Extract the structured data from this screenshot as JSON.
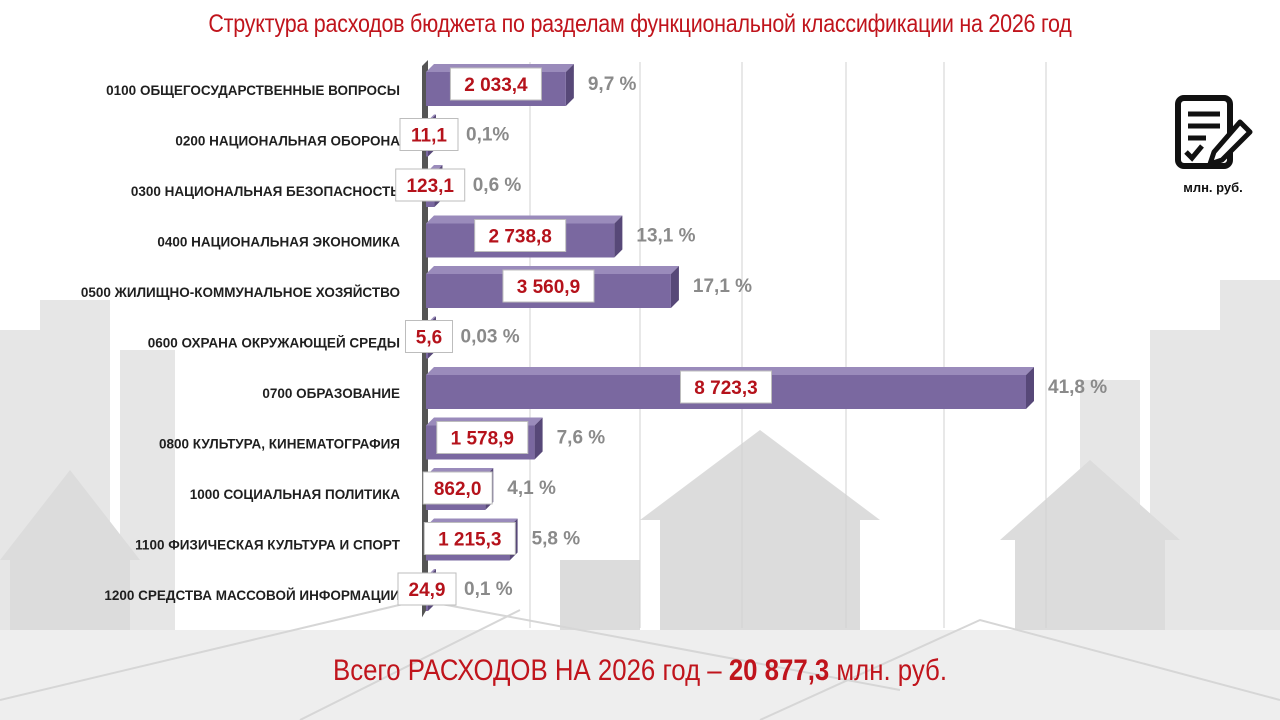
{
  "title": "Структура расходов бюджета по разделам функциональной классификации на 2026 год",
  "unit": "млн. руб.",
  "total": {
    "prefix": "Всего РАСХОДОВ НА 2026 год –",
    "value": "20 877,3",
    "suffix": "млн. руб."
  },
  "colors": {
    "title": "#c0141c",
    "bar": "#7a68a0",
    "value_text": "#b5121b",
    "percent_text": "#8a8a8a"
  },
  "chart_data": {
    "type": "bar",
    "orientation": "horizontal",
    "grid": true,
    "xlim": [
      0,
      9000
    ],
    "categories": [
      "0100 ОБЩЕГОСУДАРСТВЕННЫЕ ВОПРОСЫ",
      "0200 НАЦИОНАЛЬНАЯ ОБОРОНА",
      "0300 НАЦИОНАЛЬНАЯ  БЕЗОПАСНОСТЬ",
      "0400 НАЦИОНАЛЬНАЯ ЭКОНОМИКА",
      "0500 ЖИЛИЩНО-КОММУНАЛЬНОЕ ХОЗЯЙСТВО",
      "0600 ОХРАНА ОКРУЖАЮЩЕЙ СРЕДЫ",
      "0700 ОБРАЗОВАНИЕ",
      "0800 КУЛЬТУРА, КИНЕМАТОГРАФИЯ",
      "1000 СОЦИАЛЬНАЯ ПОЛИТИКА",
      "1100 ФИЗИЧЕСКАЯ КУЛЬТУРА И СПОРТ",
      "1200 СРЕДСТВА МАССОВОЙ ИНФОРМАЦИИ"
    ],
    "values": [
      2033.4,
      11.1,
      123.1,
      2738.8,
      3560.9,
      5.6,
      8723.3,
      1578.9,
      862.0,
      1215.3,
      24.9
    ],
    "value_labels": [
      "2 033,4",
      "11,1",
      "123,1",
      "2 738,8",
      "3 560,9",
      "5,6",
      "8 723,3",
      "1 578,9",
      "862,0",
      "1 215,3",
      "24,9"
    ],
    "percent_labels": [
      "9,7 %",
      "0,1%",
      "0,6 %",
      "13,1 %",
      "17,1 %",
      "0,03 %",
      "41,8 %",
      "7,6 %",
      "4,1 %",
      "5,8 %",
      "0,1 %"
    ]
  }
}
